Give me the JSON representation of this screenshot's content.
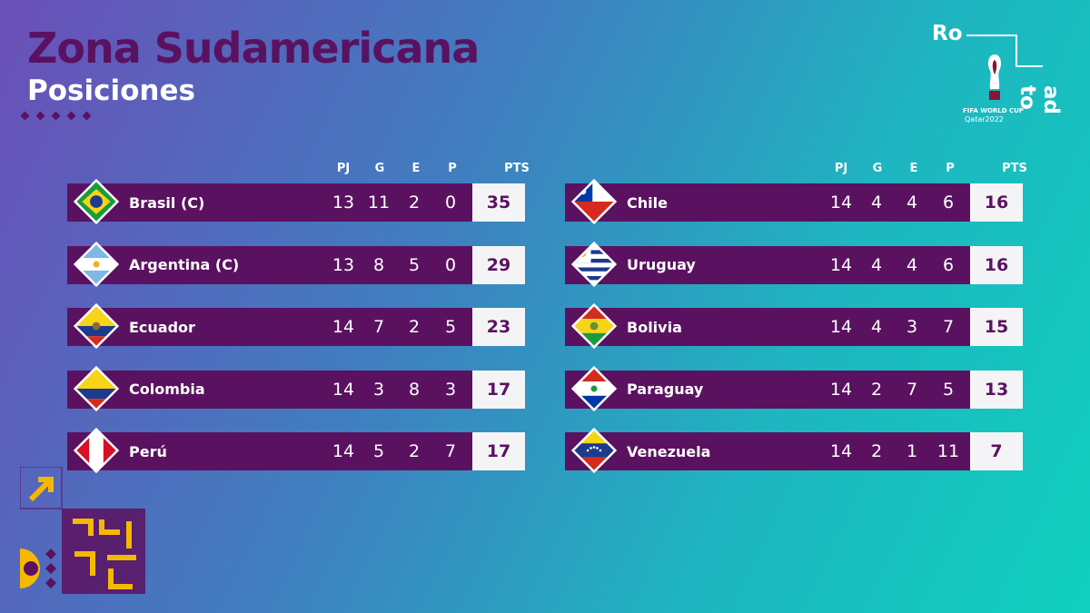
{
  "header": {
    "title": "Zona Sudamericana",
    "subtitle": "Posiciones"
  },
  "logo": {
    "ro": "Ro",
    "adto": "ad to",
    "caption_line1": "FIFA WORLD CUP",
    "caption_line2": "Qatar2022"
  },
  "columns": {
    "pj": "PJ",
    "g": "G",
    "e": "E",
    "p": "P",
    "pts": "PTS"
  },
  "left_table": [
    {
      "team": "Brasil (C)",
      "flag": "brazil-flag-icon",
      "pj": "13",
      "g": "11",
      "e": "2",
      "p": "0",
      "pts": "35"
    },
    {
      "team": "Argentina (C)",
      "flag": "argentina-flag-icon",
      "pj": "13",
      "g": "8",
      "e": "5",
      "p": "0",
      "pts": "29"
    },
    {
      "team": "Ecuador",
      "flag": "ecuador-flag-icon",
      "pj": "14",
      "g": "7",
      "e": "2",
      "p": "5",
      "pts": "23"
    },
    {
      "team": "Colombia",
      "flag": "colombia-flag-icon",
      "pj": "14",
      "g": "3",
      "e": "8",
      "p": "3",
      "pts": "17"
    },
    {
      "team": "Perú",
      "flag": "peru-flag-icon",
      "pj": "14",
      "g": "5",
      "e": "2",
      "p": "7",
      "pts": "17"
    }
  ],
  "right_table": [
    {
      "team": "Chile",
      "flag": "chile-flag-icon",
      "pj": "14",
      "g": "4",
      "e": "4",
      "p": "6",
      "pts": "16"
    },
    {
      "team": "Uruguay",
      "flag": "uruguay-flag-icon",
      "pj": "14",
      "g": "4",
      "e": "4",
      "p": "6",
      "pts": "16"
    },
    {
      "team": "Bolivia",
      "flag": "bolivia-flag-icon",
      "pj": "14",
      "g": "4",
      "e": "3",
      "p": "7",
      "pts": "15"
    },
    {
      "team": "Paraguay",
      "flag": "paraguay-flag-icon",
      "pj": "14",
      "g": "2",
      "e": "7",
      "p": "5",
      "pts": "13"
    },
    {
      "team": "Venezuela",
      "flag": "venezuela-flag-icon",
      "pj": "14",
      "g": "2",
      "e": "1",
      "p": "11",
      "pts": "7"
    }
  ],
  "colors": {
    "accent": "#5a1260",
    "pts_bg": "#f4f4f6",
    "deco_yellow": "#f5b800"
  }
}
